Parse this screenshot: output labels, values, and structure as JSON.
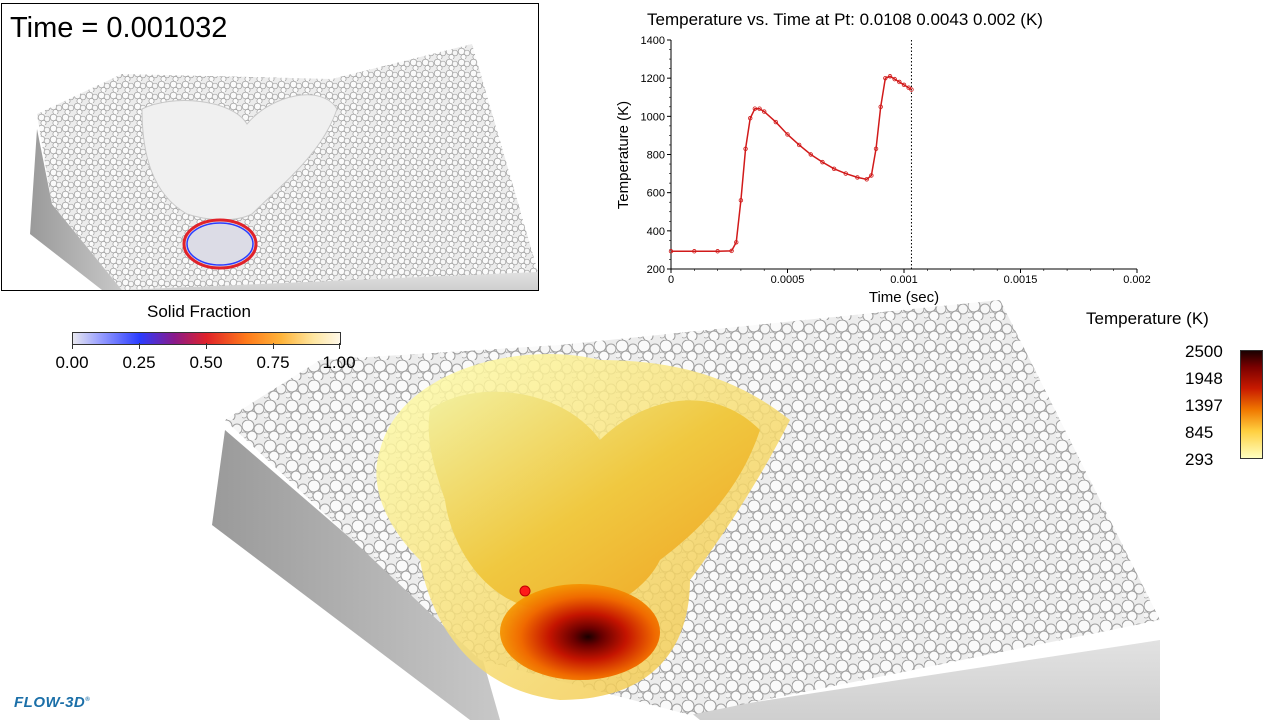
{
  "inset": {
    "time_label": "Time = 0.001032"
  },
  "chart": {
    "title": "Temperature vs. Time at Pt: 0.0108 0.0043  0.002 (K)",
    "xlabel": "Time (sec)",
    "ylabel": "Temperature  (K)",
    "x_ticks": [
      "0",
      "0.0005",
      "0.001",
      "0.0015",
      "0.002"
    ],
    "y_ticks": [
      "200",
      "400",
      "600",
      "800",
      "1000",
      "1200",
      "1400"
    ]
  },
  "chart_data": {
    "type": "line",
    "title": "Temperature vs. Time at Pt: 0.0108 0.0043  0.002 (K)",
    "xlabel": "Time (sec)",
    "ylabel": "Temperature  (K)",
    "xlim": [
      0,
      0.002
    ],
    "ylim": [
      200,
      1400
    ],
    "current_time": 0.001032,
    "series": [
      {
        "color": "#d11a1a",
        "x": [
          0,
          0.0001,
          0.0002,
          0.00026,
          0.00028,
          0.0003,
          0.00032,
          0.00034,
          0.00036,
          0.00038,
          0.0004,
          0.00045,
          0.0005,
          0.00055,
          0.0006,
          0.00065,
          0.0007,
          0.00075,
          0.0008,
          0.00084,
          0.00086,
          0.00088,
          0.0009,
          0.00092,
          0.00094,
          0.00096,
          0.00098,
          0.001,
          0.00102,
          0.001032
        ],
        "y": [
          293,
          293,
          293,
          295,
          340,
          560,
          830,
          990,
          1040,
          1040,
          1025,
          970,
          905,
          850,
          800,
          760,
          725,
          700,
          680,
          670,
          690,
          830,
          1050,
          1200,
          1210,
          1195,
          1180,
          1165,
          1150,
          1140
        ]
      }
    ]
  },
  "solid_fraction_legend": {
    "title": "Solid Fraction",
    "labels": [
      "0.00",
      "0.25",
      "0.50",
      "0.75",
      "1.00"
    ]
  },
  "temperature_legend": {
    "title": "Temperature (K)",
    "labels": [
      "2500",
      "1948",
      "1397",
      "845",
      "293"
    ]
  },
  "logo": {
    "text": "FLOW-3D",
    "mark": "®"
  },
  "colors": {
    "line": "#d11a1a",
    "probe_point": "#ff1a1a",
    "logo": "#1b6fa8"
  }
}
